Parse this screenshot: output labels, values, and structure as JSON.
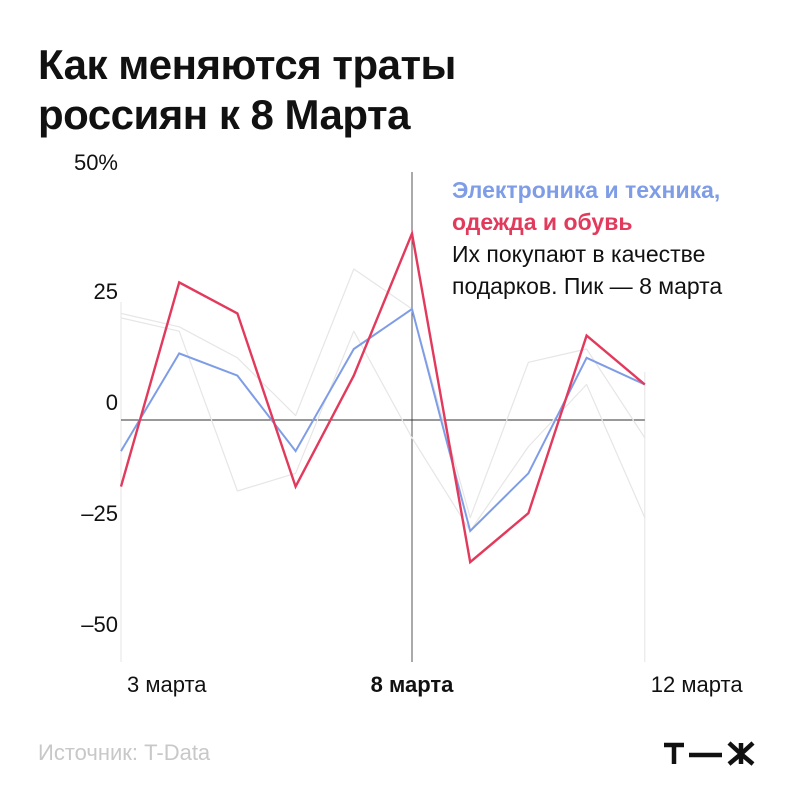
{
  "chart_data": {
    "type": "line",
    "title": "Как меняются траты россиян к 8 Марта",
    "title_lines": [
      "Как меняются траты",
      "россиян к 8 Марта"
    ],
    "ylim": [
      -50,
      50
    ],
    "y_ticks": [
      {
        "value": 50,
        "label": "50%"
      },
      {
        "value": 25,
        "label": "25"
      },
      {
        "value": 0,
        "label": "0"
      },
      {
        "value": -25,
        "label": "–25"
      },
      {
        "value": -50,
        "label": "–50"
      }
    ],
    "x": [
      0,
      1,
      2,
      3,
      4,
      5,
      6,
      7,
      8,
      9
    ],
    "x_ticks": [
      {
        "index": 0,
        "label": "3 марта",
        "bold": false
      },
      {
        "index": 5,
        "label": "8 марта",
        "bold": true
      },
      {
        "index": 9,
        "label": "12 марта",
        "bold": false
      }
    ],
    "highlight_index": 5,
    "series": [
      {
        "name": "Электроника и техника,",
        "color": "#7f9de6",
        "values": [
          -7,
          15,
          10,
          -7,
          16,
          25,
          -25,
          -12,
          14,
          8
        ]
      },
      {
        "name": "одежда и обувь",
        "color": "#e23a5c",
        "values": [
          -15,
          31,
          24,
          -15,
          10,
          42,
          -32,
          -21,
          19,
          8
        ]
      }
    ],
    "background_series_color": "#e6e6e6",
    "background_series": [
      {
        "values": [
          24,
          21,
          14,
          1,
          34,
          25,
          -22,
          13,
          16,
          -4
        ]
      },
      {
        "values": [
          23,
          20,
          -16,
          -12,
          20,
          -4,
          -25,
          -6,
          8,
          -22
        ]
      }
    ],
    "legend": {
      "note_lines": [
        "Их покупают  в качестве",
        "подарков. Пик — 8 марта"
      ]
    }
  },
  "footer": {
    "source": "Источник: T-Data",
    "logo": "т—ж"
  }
}
